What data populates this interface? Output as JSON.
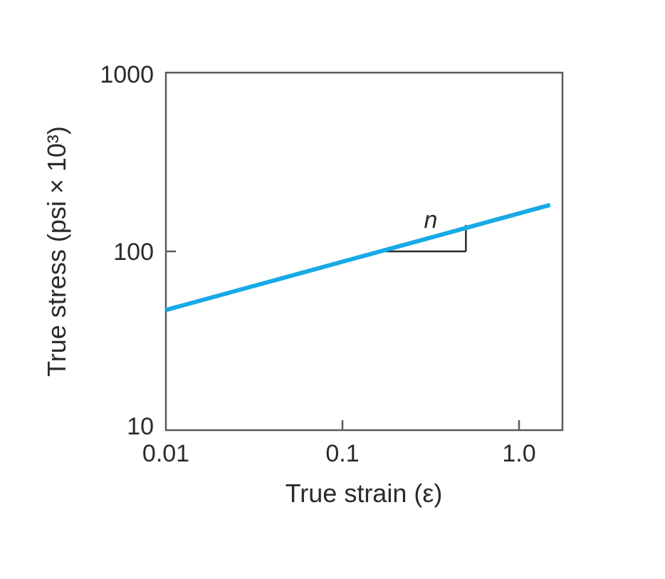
{
  "chart_data": {
    "type": "line",
    "xlabel": "True strain (ε)",
    "ylabel": "True stress (psi × 10³)",
    "x_scale": "log",
    "y_scale": "log",
    "xlim": [
      0.01,
      1.7
    ],
    "ylim": [
      10,
      1000
    ],
    "x_ticks": [
      {
        "value": 0.01,
        "label": "0.01"
      },
      {
        "value": 0.1,
        "label": "0.1"
      },
      {
        "value": 1.0,
        "label": "1.0"
      }
    ],
    "y_ticks": [
      {
        "value": 10,
        "label": "10"
      },
      {
        "value": 100,
        "label": "100"
      },
      {
        "value": 1000,
        "label": "1000"
      }
    ],
    "grid": false,
    "series": [
      {
        "color": "#19a9e6",
        "x": [
          0.01,
          1.5
        ],
        "y": [
          47,
          182
        ]
      }
    ],
    "annotations": [
      {
        "label": "n",
        "kind": "slope-triangle",
        "x_start": 0.16,
        "x_end": 0.5,
        "y": 100
      }
    ]
  }
}
